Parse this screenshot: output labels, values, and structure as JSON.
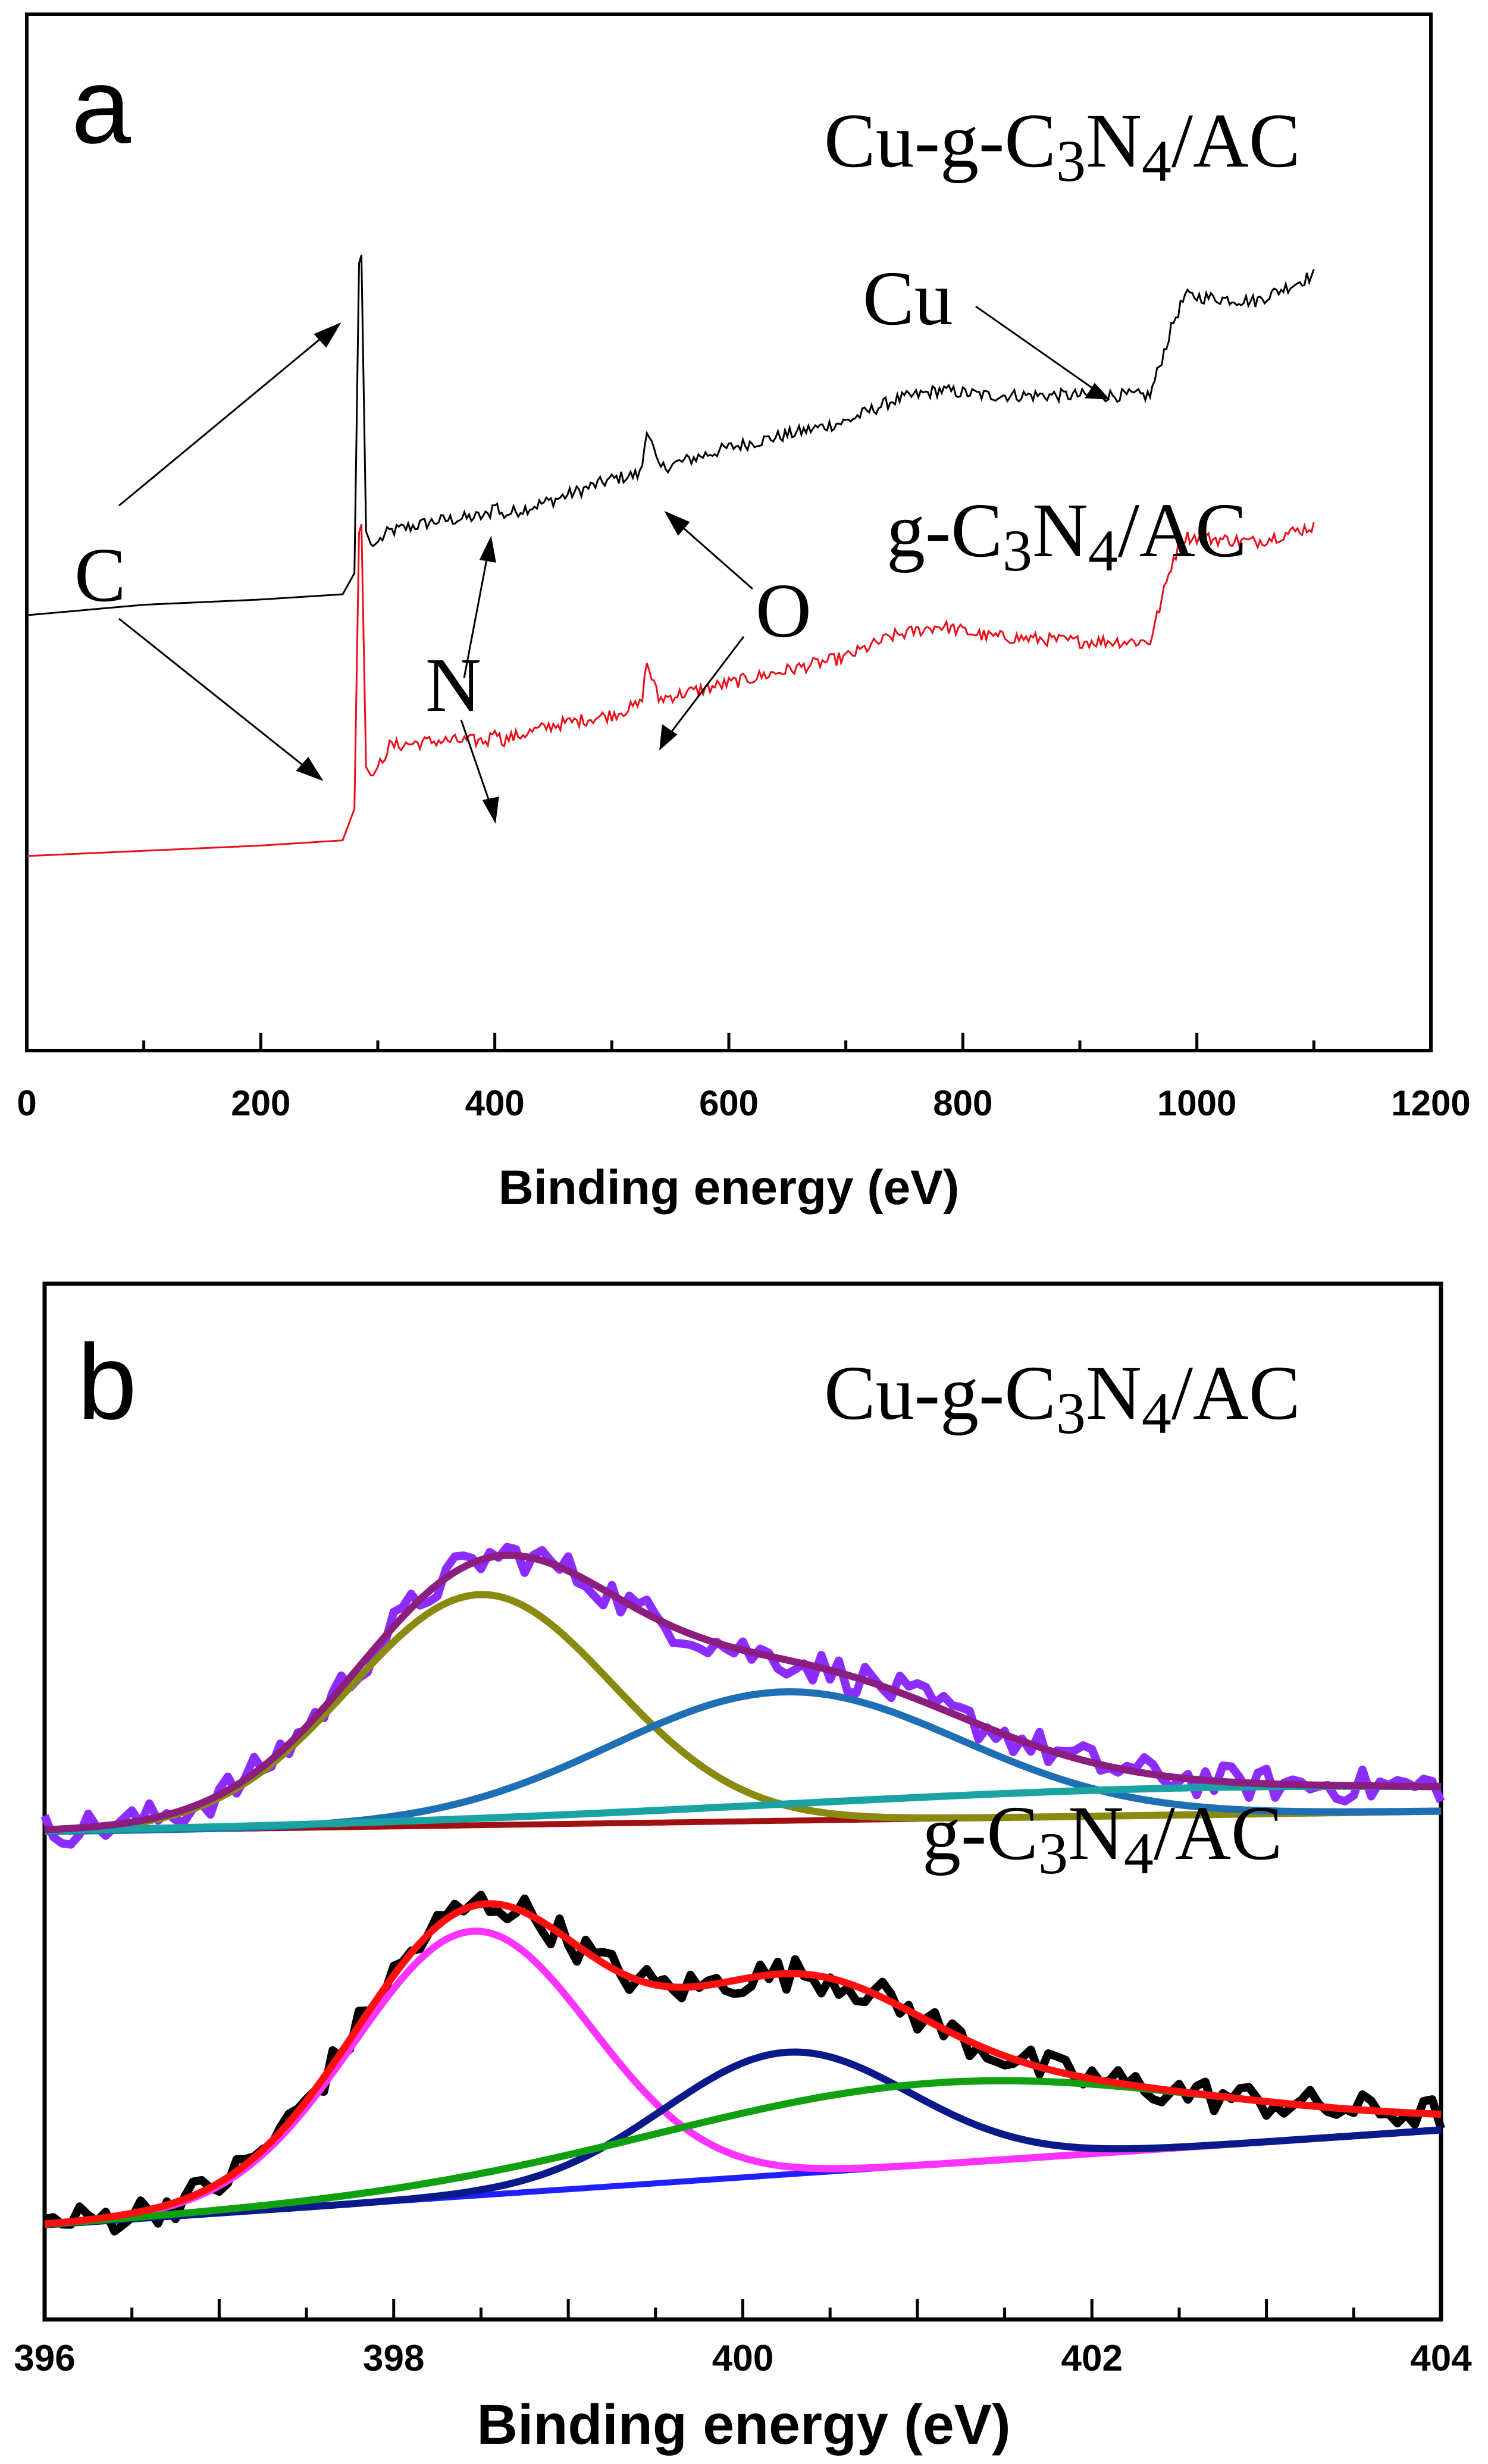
{
  "colors": {
    "cu_survey": "#000000",
    "g_survey": "#e8101a",
    "b_cu_raw": "#8c2cff",
    "b_cu_envelope": "#8b1e7e",
    "b_cu_peak1": "#8a8a10",
    "b_cu_peak2": "#1f6fb5",
    "b_cu_peak3": "#1aa3a3",
    "b_cu_baseline": "#a01010",
    "b_g_raw": "#000000",
    "b_g_envelope": "#ff1010",
    "b_g_peak1": "#ff33ff",
    "b_g_peak2": "#0b1a8a",
    "b_g_peak3": "#10a010",
    "b_g_baseline": "#2020ff"
  },
  "chart_data": [
    {
      "panel": "a",
      "type": "line",
      "title": "",
      "xlabel": "Binding energy (eV)",
      "ylabel": "",
      "xlim": [
        0,
        1200
      ],
      "xticks": [
        "0",
        "200",
        "400",
        "600",
        "800",
        "1000",
        "1200"
      ],
      "y_ticks_shown": false,
      "series": [
        {
          "name": "Cu-g-C3N4/AC",
          "label_parts": [
            "Cu-g-C",
            "3",
            "N",
            "4",
            "/AC"
          ],
          "x": [
            0,
            100,
            200,
            270,
            280,
            285,
            290,
            295,
            310,
            350,
            395,
            400,
            405,
            450,
            500,
            525,
            530,
            540,
            600,
            700,
            740,
            780,
            820,
            900,
            960,
            980,
            990,
            1050,
            1100
          ],
          "y": [
            0.16,
            0.18,
            0.19,
            0.2,
            0.24,
            0.98,
            0.32,
            0.29,
            0.32,
            0.34,
            0.35,
            0.38,
            0.35,
            0.38,
            0.42,
            0.43,
            0.52,
            0.44,
            0.48,
            0.53,
            0.57,
            0.59,
            0.58,
            0.58,
            0.58,
            0.72,
            0.77,
            0.76,
            0.81
          ]
        },
        {
          "name": "g-C3N4/AC",
          "label_parts": [
            "g-C",
            "3",
            "N",
            "4",
            "/AC"
          ],
          "x": [
            0,
            100,
            200,
            270,
            280,
            285,
            290,
            295,
            310,
            350,
            395,
            400,
            405,
            450,
            500,
            525,
            530,
            540,
            600,
            700,
            740,
            780,
            820,
            900,
            960,
            980,
            990,
            1050,
            1100
          ],
          "y": [
            -0.3,
            -0.29,
            -0.28,
            -0.27,
            -0.21,
            0.45,
            -0.13,
            -0.15,
            -0.09,
            -0.08,
            -0.08,
            -0.05,
            -0.08,
            -0.05,
            -0.03,
            -0.01,
            0.07,
            0.0,
            0.03,
            0.08,
            0.12,
            0.14,
            0.12,
            0.11,
            0.11,
            0.27,
            0.31,
            0.3,
            0.33
          ]
        }
      ],
      "annotations": [
        {
          "text": "C",
          "points_to": [
            "Cu-g-C3N4/AC C peak",
            "g-C3N4/AC C peak"
          ]
        },
        {
          "text": "N",
          "points_to": [
            "Cu-g-C3N4/AC N peak",
            "g-C3N4/AC N peak"
          ]
        },
        {
          "text": "O",
          "points_to": [
            "Cu-g-C3N4/AC O peak",
            "g-C3N4/AC O peak"
          ]
        },
        {
          "text": "Cu",
          "points_to": [
            "Cu-g-C3N4/AC Cu feature"
          ]
        }
      ]
    },
    {
      "panel": "b",
      "type": "line",
      "title": "",
      "xlabel": "Binding energy (eV)",
      "ylabel": "",
      "xlim": [
        396,
        404
      ],
      "xticks": [
        "396",
        "398",
        "400",
        "402",
        "404"
      ],
      "y_ticks_shown": false,
      "groups": [
        {
          "name": "Cu-g-C3N4/AC",
          "label_parts": [
            "Cu-g-C",
            "3",
            "N",
            "4",
            "/AC"
          ],
          "offset": 0.58,
          "baseline": [
            0.0,
            0.03
          ],
          "peaks": [
            {
              "center": 398.5,
              "sigma": 0.75,
              "amplitude": 0.34
            },
            {
              "center": 400.25,
              "sigma": 1.0,
              "amplitude": 0.19
            },
            {
              "center": 402.8,
              "sigma": 2.6,
              "amplitude": 0.04
            }
          ]
        },
        {
          "name": "g-C3N4/AC",
          "label_parts": [
            "g-C",
            "3",
            "N",
            "4",
            "/AC"
          ],
          "offset": 0.0,
          "baseline": [
            0.0,
            0.14
          ],
          "peaks": [
            {
              "center": 398.45,
              "sigma": 0.68,
              "amplitude": 0.39
            },
            {
              "center": 400.25,
              "sigma": 0.7,
              "amplitude": 0.18
            },
            {
              "center": 401.1,
              "sigma": 1.6,
              "amplitude": 0.12
            }
          ]
        }
      ]
    }
  ]
}
